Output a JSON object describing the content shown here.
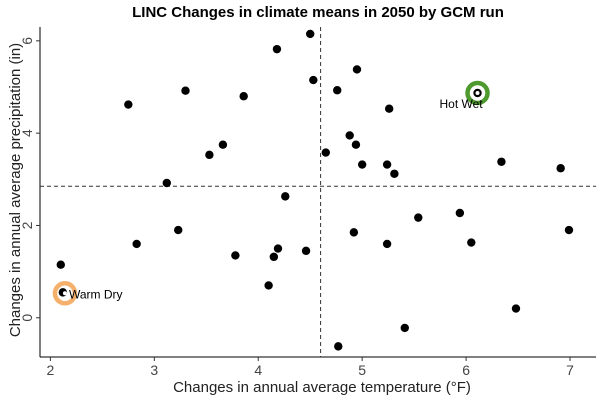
{
  "chart_data": {
    "type": "scatter",
    "title": "LINC Changes in climate means in 2050 by GCM run",
    "xlabel": "Changes in annual average temperature (°F)",
    "ylabel": "Changes in annual average precipitation (in)",
    "xlim": [
      1.9,
      7.25
    ],
    "ylim": [
      -0.85,
      6.3
    ],
    "xticks": [
      2,
      3,
      4,
      5,
      6,
      7
    ],
    "yticks": [
      0,
      2,
      4,
      6
    ],
    "grid": false,
    "reference_lines": {
      "x": 4.6,
      "y": 2.85
    },
    "points": [
      {
        "x": 2.1,
        "y": 1.15
      },
      {
        "x": 2.12,
        "y": 0.55
      },
      {
        "x": 2.75,
        "y": 4.62
      },
      {
        "x": 2.83,
        "y": 1.6
      },
      {
        "x": 3.12,
        "y": 2.92
      },
      {
        "x": 3.23,
        "y": 1.9
      },
      {
        "x": 3.3,
        "y": 4.92
      },
      {
        "x": 3.53,
        "y": 3.53
      },
      {
        "x": 3.66,
        "y": 3.75
      },
      {
        "x": 3.78,
        "y": 1.35
      },
      {
        "x": 3.86,
        "y": 4.8
      },
      {
        "x": 4.1,
        "y": 0.7
      },
      {
        "x": 4.15,
        "y": 1.32
      },
      {
        "x": 4.18,
        "y": 5.82
      },
      {
        "x": 4.19,
        "y": 1.5
      },
      {
        "x": 4.26,
        "y": 2.63
      },
      {
        "x": 4.46,
        "y": 1.45
      },
      {
        "x": 4.5,
        "y": 6.15
      },
      {
        "x": 4.53,
        "y": 5.15
      },
      {
        "x": 4.65,
        "y": 3.58
      },
      {
        "x": 4.76,
        "y": 4.93
      },
      {
        "x": 4.77,
        "y": -0.62
      },
      {
        "x": 4.88,
        "y": 3.95
      },
      {
        "x": 4.92,
        "y": 1.85
      },
      {
        "x": 4.94,
        "y": 3.75
      },
      {
        "x": 4.95,
        "y": 5.38
      },
      {
        "x": 5.0,
        "y": 3.32
      },
      {
        "x": 5.24,
        "y": 3.32
      },
      {
        "x": 5.24,
        "y": 1.6
      },
      {
        "x": 5.26,
        "y": 4.53
      },
      {
        "x": 5.31,
        "y": 3.12
      },
      {
        "x": 5.41,
        "y": -0.22
      },
      {
        "x": 5.54,
        "y": 2.17
      },
      {
        "x": 5.94,
        "y": 2.27
      },
      {
        "x": 6.05,
        "y": 1.63
      },
      {
        "x": 6.11,
        "y": 4.87
      },
      {
        "x": 6.34,
        "y": 3.38
      },
      {
        "x": 6.48,
        "y": 0.2
      },
      {
        "x": 6.91,
        "y": 3.24
      },
      {
        "x": 6.99,
        "y": 1.9
      }
    ],
    "highlights": [
      {
        "label": "Hot Wet",
        "x": 6.11,
        "y": 4.87,
        "color": "#4e9a2f"
      },
      {
        "label": "Warm Dry",
        "x": 2.14,
        "y": 0.53,
        "color": "#f5b06b"
      }
    ]
  }
}
